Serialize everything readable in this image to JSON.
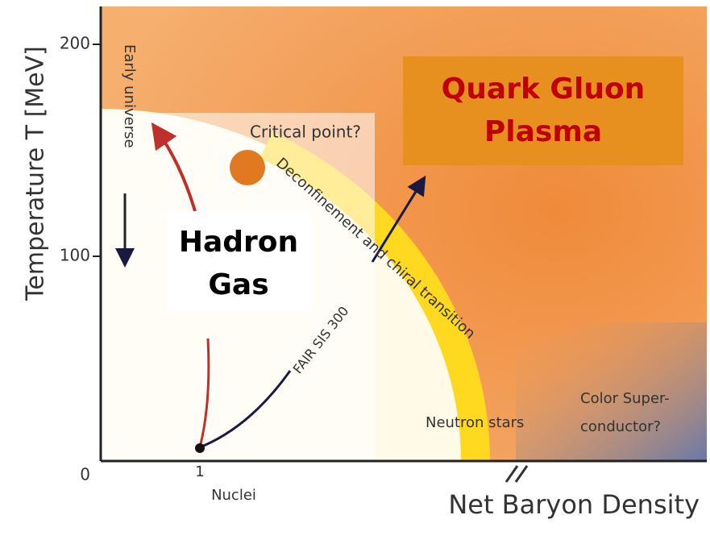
{
  "axes": {
    "y_label": "Temperature T [MeV]",
    "y_ticks": [
      "200",
      "100",
      "0"
    ],
    "x_label": "Net Baryon Density",
    "x_tick": "1",
    "x_tick_label": "Nuclei"
  },
  "annotations": {
    "early_universe": "Early universe",
    "critical_point": "Critical point?",
    "transition": "Deconfinement and chiral transition",
    "fair": "FAIR SIS 300",
    "neutron_stars": "Neutron stars",
    "color_super_1": "Color Super-",
    "color_super_2": "conductor?"
  },
  "labels": {
    "qgp_1": "Quark Gluon",
    "qgp_2": "Plasma",
    "hadron_1": "Hadron",
    "hadron_2": "Gas"
  }
}
